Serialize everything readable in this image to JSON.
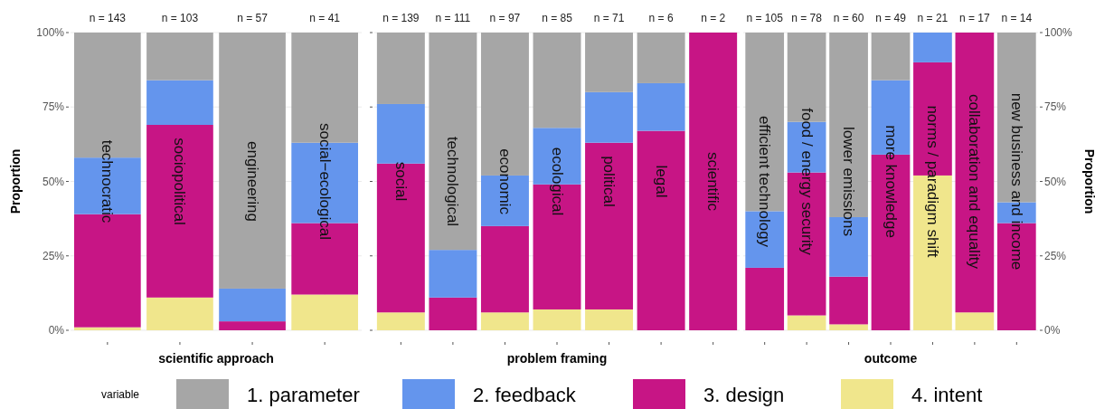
{
  "chart_data": [
    {
      "type": "bar",
      "stacked": true,
      "xlabel": "scientific approach",
      "ylabel": "Proportion",
      "legend": "bottom",
      "legend_title": "variable",
      "grid": true,
      "categories": [
        "technocratic",
        "sociopolitical",
        "engineering",
        "social−ecological"
      ],
      "ylim": [
        0,
        100
      ],
      "yticks": [
        {
          "value": 0,
          "label": "0%"
        },
        {
          "value": 25,
          "label": "25%"
        },
        {
          "value": 50,
          "label": "50%"
        },
        {
          "value": 75,
          "label": "75%"
        },
        {
          "value": 100,
          "label": "100%"
        }
      ],
      "annotations": [
        "n = 143",
        "n = 103",
        "n = 57",
        "n = 41"
      ],
      "series": [
        {
          "name": "4. intent",
          "color": "#f0e68c",
          "values": [
            1,
            11,
            0,
            12
          ]
        },
        {
          "name": "3. design",
          "color": "#c71585",
          "values": [
            38,
            58,
            3,
            24
          ]
        },
        {
          "name": "2. feedback",
          "color": "#6495ed",
          "values": [
            19,
            15,
            11,
            27
          ]
        },
        {
          "name": "1. parameter",
          "color": "#a6a6a6",
          "values": [
            42,
            16,
            86,
            37
          ]
        }
      ]
    },
    {
      "type": "bar",
      "stacked": true,
      "xlabel": "problem framing",
      "grid": true,
      "tick_labels": "x",
      "categories": [
        "social",
        "technological",
        "economic",
        "ecological",
        "political",
        "legal",
        "scientific"
      ],
      "ylim": [
        0,
        100
      ],
      "yticks": [
        {
          "value": 0,
          "label": null
        },
        {
          "value": 25,
          "label": null
        },
        {
          "value": 50,
          "label": null
        },
        {
          "value": 75,
          "label": null
        },
        {
          "value": 100,
          "label": null
        }
      ],
      "annotations": [
        "n = 139",
        "n = 111",
        "n = 97",
        "n = 85",
        "n = 71",
        "n = 6",
        "n = 2"
      ],
      "series": [
        {
          "color": "#f0e68c",
          "values": [
            6,
            0,
            6,
            7,
            7,
            0,
            0
          ]
        },
        {
          "color": "#c71585",
          "values": [
            50,
            11,
            29,
            42,
            56,
            67,
            100
          ]
        },
        {
          "color": "#6495ed",
          "values": [
            20,
            16,
            17,
            19,
            17,
            16,
            0
          ]
        },
        {
          "color": "#a6a6a6",
          "values": [
            24,
            73,
            48,
            32,
            20,
            17,
            0
          ]
        }
      ]
    },
    {
      "type": "bar",
      "stacked": true,
      "xlabel": "outcome",
      "y2label": "Proportion",
      "grid": true,
      "categories": [
        "efficient technology",
        "food / energy security",
        "lower emissions",
        "more knowledge",
        "norms / paradigm shift",
        "collaboration and equality",
        "new business and income"
      ],
      "y2lim": [
        0,
        100
      ],
      "y2ticks": [
        {
          "value": 0,
          "label": "0%"
        },
        {
          "value": 25,
          "label": "25%"
        },
        {
          "value": 50,
          "label": "50%"
        },
        {
          "value": 75,
          "label": "75%"
        },
        {
          "value": 100,
          "label": "100%"
        }
      ],
      "annotations": [
        "n = 105",
        "n = 78",
        "n = 60",
        "n = 49",
        "n = 21",
        "n = 17",
        "n = 14"
      ],
      "series": [
        {
          "color": "#f0e68c",
          "axis": "y2",
          "values": [
            0,
            5,
            2,
            0,
            52,
            6,
            0
          ]
        },
        {
          "color": "#c71585",
          "axis": "y2",
          "values": [
            21,
            48,
            16,
            59,
            38,
            94,
            36
          ]
        },
        {
          "color": "#6495ed",
          "axis": "y2",
          "values": [
            19,
            17,
            20,
            25,
            10,
            0,
            7
          ]
        },
        {
          "color": "#a6a6a6",
          "axis": "y2",
          "values": [
            60,
            30,
            62,
            16,
            0,
            0,
            57
          ]
        }
      ]
    }
  ]
}
